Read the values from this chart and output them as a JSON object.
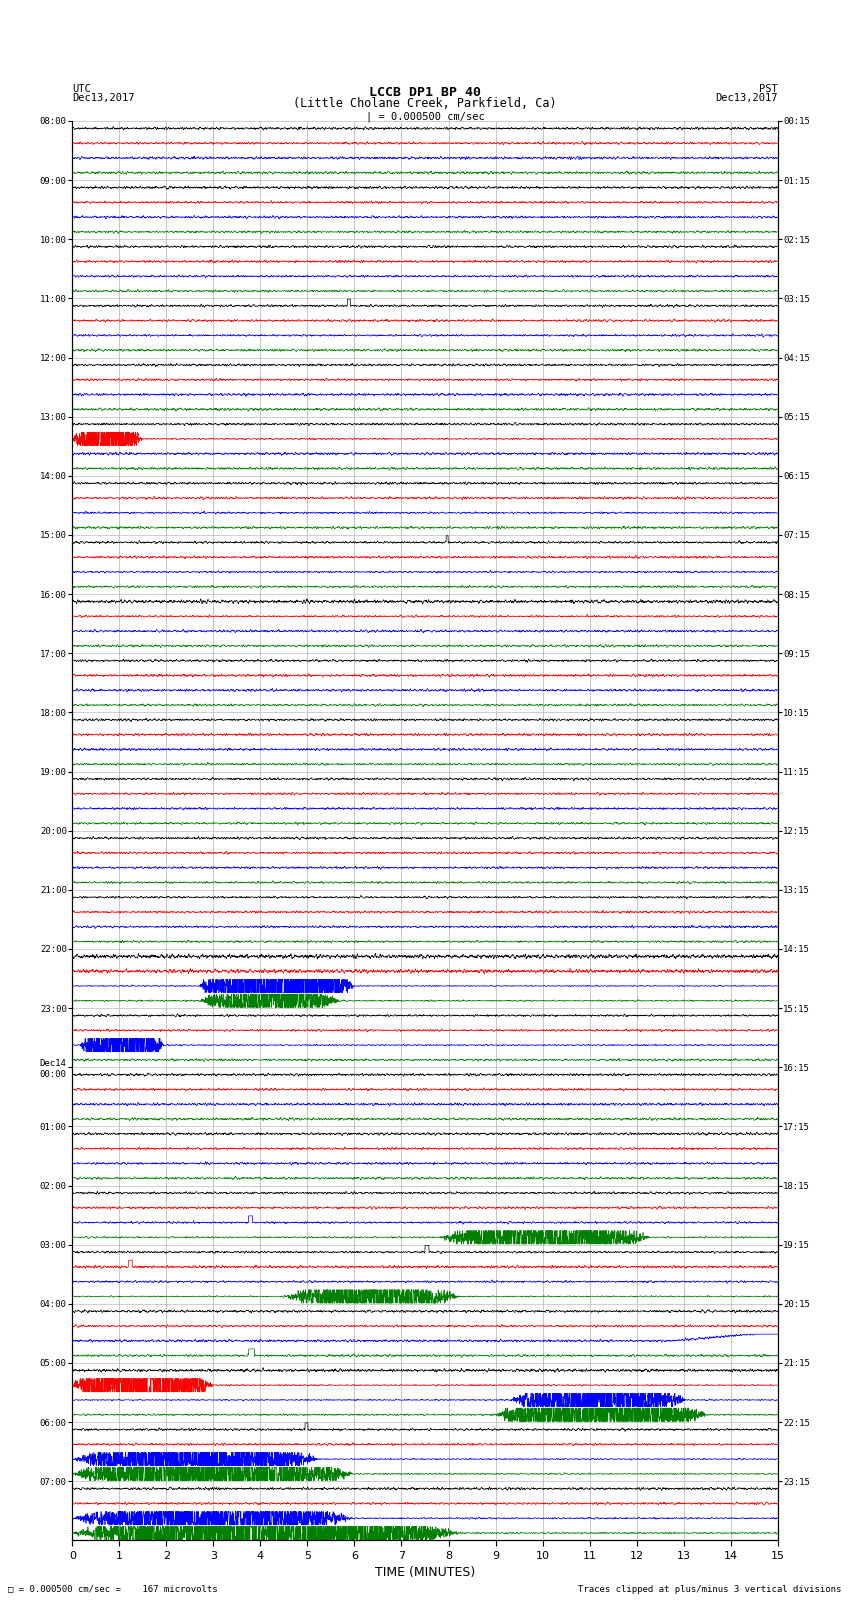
{
  "title_line1": "LCCB DP1 BP 40",
  "title_line2": "(Little Cholane Creek, Parkfield, Ca)",
  "scale_label": "| = 0.000500 cm/sec",
  "left_label": "UTC",
  "left_date": "Dec13,2017",
  "right_label": "PST",
  "right_date": "Dec13,2017",
  "bottom_label": "TIME (MINUTES)",
  "bottom_note_left": "= 0.000500 cm/sec =    167 microvolts",
  "bottom_note_right": "Traces clipped at plus/minus 3 vertical divisions",
  "trace_colors": [
    "black",
    "red",
    "blue",
    "green"
  ],
  "background_color": "#ffffff",
  "utc_labels": [
    "08:00",
    "09:00",
    "10:00",
    "11:00",
    "12:00",
    "13:00",
    "14:00",
    "15:00",
    "16:00",
    "17:00",
    "18:00",
    "19:00",
    "20:00",
    "21:00",
    "22:00",
    "23:00",
    "Dec14\n00:00",
    "01:00",
    "02:00",
    "03:00",
    "04:00",
    "05:00",
    "06:00",
    "07:00"
  ],
  "pst_labels": [
    "00:15",
    "01:15",
    "02:15",
    "03:15",
    "04:15",
    "05:15",
    "06:15",
    "07:15",
    "08:15",
    "09:15",
    "10:15",
    "11:15",
    "12:15",
    "13:15",
    "14:15",
    "15:15",
    "16:15",
    "17:15",
    "18:15",
    "19:15",
    "20:15",
    "21:15",
    "22:15",
    "23:15"
  ],
  "noise_seed": 42,
  "grid_color": "#bbbbbb",
  "vert_grid_color": "#999999"
}
